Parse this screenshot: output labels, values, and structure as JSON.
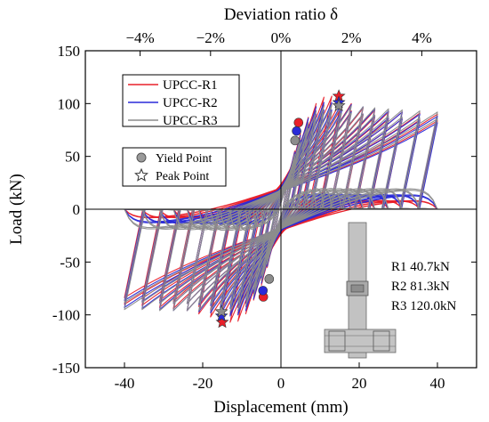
{
  "chart_data": {
    "type": "line",
    "title": "",
    "xlabel": "Displacement (mm)",
    "ylabel": "Load (kN)",
    "top_xlabel": "Deviation ratio δ",
    "xlim": [
      -50,
      50
    ],
    "ylim": [
      -150,
      150
    ],
    "x_ticks": [
      -40,
      -20,
      0,
      20,
      40
    ],
    "y_ticks": [
      -150,
      -100,
      -50,
      0,
      50,
      100,
      150
    ],
    "top_ticks": [
      {
        "x": -36,
        "label": "−4%"
      },
      {
        "x": -18,
        "label": "−2%"
      },
      {
        "x": 0,
        "label": "0%"
      },
      {
        "x": 18,
        "label": "2%"
      },
      {
        "x": 36,
        "label": "4%"
      }
    ],
    "series": [
      {
        "name": "UPCC-R1",
        "color": "#e8202a",
        "amplitudes": [
          2,
          3.5,
          5,
          7,
          9,
          11,
          13,
          15.5,
          18,
          21,
          24,
          27.5,
          31,
          35.5,
          40
        ],
        "peaks_pos": [
          35,
          55,
          72,
          87,
          100,
          106,
          107,
          104,
          100,
          96,
          94,
          92,
          92,
          91,
          90
        ],
        "peaks_neg": [
          -35,
          -55,
          -72,
          -86,
          -99,
          -106,
          -107,
          -105,
          -102,
          -99,
          -96,
          -94,
          -93,
          -91,
          -90
        ]
      },
      {
        "name": "UPCC-R2",
        "color": "#2a2ad8",
        "amplitudes": [
          2,
          3.5,
          5,
          7,
          9,
          11,
          13,
          15.5,
          18,
          21,
          24,
          27.5,
          31,
          35.5,
          40
        ],
        "peaks_pos": [
          34,
          54,
          70,
          86,
          97,
          101,
          101,
          100,
          99,
          97,
          95,
          93,
          92,
          90,
          88
        ],
        "peaks_neg": [
          -34,
          -54,
          -70,
          -85,
          -96,
          -100,
          -101,
          -100,
          -98,
          -97,
          -96,
          -96,
          -95,
          -94,
          -93
        ]
      },
      {
        "name": "UPCC-R3",
        "color": "#8c8c8c",
        "amplitudes": [
          2,
          3.5,
          5,
          7,
          9,
          11,
          13,
          15.5,
          18,
          21,
          24,
          27.5,
          31,
          35.5,
          40
        ],
        "peaks_pos": [
          33,
          52,
          68,
          82,
          93,
          98,
          99,
          98,
          98,
          97,
          96,
          95,
          94,
          93,
          92
        ],
        "peaks_neg": [
          -33,
          -52,
          -68,
          -82,
          -92,
          -96,
          -97,
          -97,
          -96,
          -96,
          -96,
          -96,
          -96,
          -95,
          -95
        ]
      }
    ],
    "points": [
      {
        "series": "UPCC-R1",
        "kind": "yield",
        "x": 4.5,
        "y": 82,
        "color": "#e8202a"
      },
      {
        "series": "UPCC-R2",
        "kind": "yield",
        "x": 4.0,
        "y": 74,
        "color": "#2a2ad8"
      },
      {
        "series": "UPCC-R3",
        "kind": "yield",
        "x": 3.6,
        "y": 65,
        "color": "#8c8c8c"
      },
      {
        "series": "UPCC-R1",
        "kind": "yield",
        "x": -4.5,
        "y": -83,
        "color": "#e8202a"
      },
      {
        "series": "UPCC-R2",
        "kind": "yield",
        "x": -4.6,
        "y": -77,
        "color": "#2a2ad8"
      },
      {
        "series": "UPCC-R3",
        "kind": "yield",
        "x": -3.0,
        "y": -66,
        "color": "#8c8c8c"
      },
      {
        "series": "UPCC-R1",
        "kind": "peak",
        "x": 14.8,
        "y": 107,
        "color": "#e8202a"
      },
      {
        "series": "UPCC-R2",
        "kind": "peak",
        "x": 14.8,
        "y": 101,
        "color": "#2a2ad8"
      },
      {
        "series": "UPCC-R3",
        "kind": "peak",
        "x": 14.8,
        "y": 98,
        "color": "#8c8c8c"
      },
      {
        "series": "UPCC-R1",
        "kind": "peak",
        "x": -15.0,
        "y": -107,
        "color": "#e8202a"
      },
      {
        "series": "UPCC-R2",
        "kind": "peak",
        "x": -15.2,
        "y": -101,
        "color": "#2a2ad8"
      },
      {
        "series": "UPCC-R3",
        "kind": "peak",
        "x": -15.2,
        "y": -97,
        "color": "#8c8c8c"
      }
    ],
    "legend_series": [
      "UPCC-R1",
      "UPCC-R2",
      "UPCC-R3"
    ],
    "legend_series_position": "top-left",
    "legend_markers": {
      "yield": "Yield Point",
      "peak": "Peak Point"
    },
    "legend_markers_position": "center-left",
    "axial_loads": [
      "R1 40.7kN",
      "R2 81.3kN",
      "R3 120.0kN"
    ],
    "grid": false
  }
}
